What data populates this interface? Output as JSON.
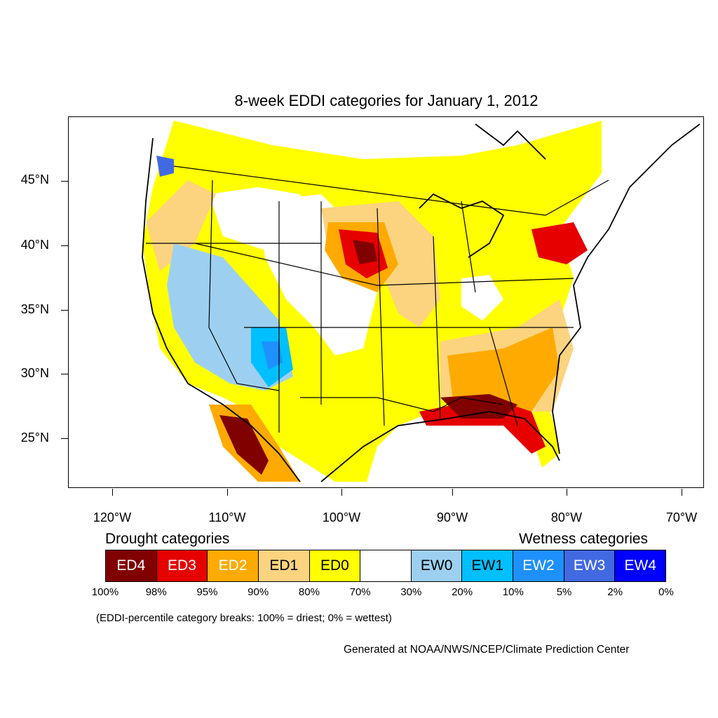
{
  "title": "8-week EDDI categories for January 1, 2012",
  "y_axis": {
    "labels": [
      "45°N",
      "40°N",
      "35°N",
      "30°N",
      "25°N"
    ]
  },
  "x_axis": {
    "labels": [
      "120°W",
      "110°W",
      "100°W",
      "90°W",
      "80°W",
      "70°W"
    ]
  },
  "legend": {
    "drought_heading": "Drought categories",
    "wetness_heading": "Wetness categories",
    "categories": [
      {
        "label": "ED4",
        "color": "#800000",
        "text_color": "#ffffff"
      },
      {
        "label": "ED3",
        "color": "#e60000",
        "text_color": "#ffffff"
      },
      {
        "label": "ED2",
        "color": "#ffaa00",
        "text_color": "#ffffff"
      },
      {
        "label": "ED1",
        "color": "#fcd37f",
        "text_color": "#000000"
      },
      {
        "label": "ED0",
        "color": "#ffff00",
        "text_color": "#000000"
      },
      {
        "label": "",
        "color": "#ffffff",
        "text_color": "#000000"
      },
      {
        "label": "EW0",
        "color": "#9dd0f0",
        "text_color": "#000000"
      },
      {
        "label": "EW1",
        "color": "#00bfff",
        "text_color": "#000000"
      },
      {
        "label": "EW2",
        "color": "#1e90ff",
        "text_color": "#ffffff"
      },
      {
        "label": "EW3",
        "color": "#4169e1",
        "text_color": "#ffffff"
      },
      {
        "label": "EW4",
        "color": "#0000ff",
        "text_color": "#ffffff"
      }
    ],
    "breaks": [
      "100%",
      "98%",
      "95%",
      "90%",
      "80%",
      "70%",
      "30%",
      "20%",
      "10%",
      "5%",
      "2%",
      "0%"
    ]
  },
  "note": "(EDDI-percentile category breaks: 100% = driest; 0% = wettest)",
  "credit": "Generated at NOAA/NWS/NCEP/Climate Prediction Center"
}
